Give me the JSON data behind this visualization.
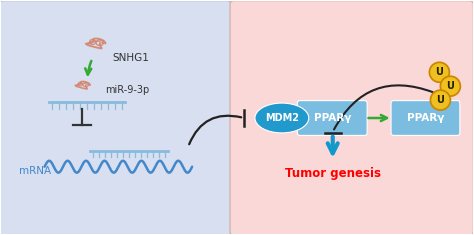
{
  "bg_left_color": "#d8dff0",
  "bg_right_color": "#fad8d8",
  "snhg1_label": "SNHG1",
  "mir_label": "miR-9-3p",
  "mrna_label": "mRNA",
  "mdm2_label": "MDM2",
  "ppary1_label": "PPARγ",
  "ppary2_label": "PPARγ",
  "tumor_label": "Tumor genesis",
  "ubi_label": "U",
  "snhg1_color": "#d4826a",
  "mir_color": "#d4826a",
  "mrna_color": "#4488cc",
  "mdm2_fill": "#2299cc",
  "ppary_fill": "#7bbde0",
  "tumor_color": "#ff0000",
  "arrow_green": "#33aa33",
  "arrow_blue": "#1199cc",
  "arrow_black": "#222222",
  "ubi_fill": "#f0c020",
  "ubi_border": "#cc8800",
  "platform_color": "#88bbdd",
  "inhibit_color": "#333333"
}
